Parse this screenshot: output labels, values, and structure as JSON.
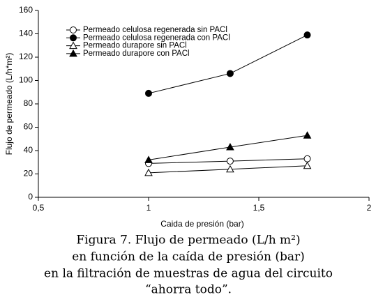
{
  "chart_data": {
    "type": "line",
    "xlabel": "Caida de presión (bar)",
    "ylabel": "Flujo de permeado (L/h*m²)",
    "xlim": [
      0.5,
      2
    ],
    "xticks": [
      {
        "value": 0.5,
        "label": "0,5"
      },
      1,
      {
        "value": 1.5,
        "label": "1,5"
      },
      2
    ],
    "ylim": [
      0,
      160
    ],
    "yticks": [
      0,
      20,
      40,
      60,
      80,
      100,
      120,
      140,
      160
    ],
    "legend": "upper-left",
    "series": [
      {
        "name": "Permeado celulosa regenerada sin PACl",
        "color": "#000000",
        "marker": "open-circle",
        "x": [
          1,
          1.37,
          1.72
        ],
        "values": [
          29,
          31,
          33
        ]
      },
      {
        "name": "Permeado celulosa regenerada con PACl",
        "color": "#000000",
        "marker": "filled-circle",
        "x": [
          1,
          1.37,
          1.72
        ],
        "values": [
          89,
          106,
          139
        ]
      },
      {
        "name": "Permeado durapore sin PACl",
        "color": "#000000",
        "marker": "open-triangle",
        "x": [
          1,
          1.37,
          1.72
        ],
        "values": [
          21,
          24,
          27
        ]
      },
      {
        "name": "Permeado durapore con PACl",
        "color": "#000000",
        "marker": "filled-triangle",
        "x": [
          1,
          1.37,
          1.72
        ],
        "values": [
          32,
          43,
          53
        ]
      }
    ]
  },
  "caption": [
    "Figura 7. Flujo de permeado (L/h m²)",
    "en función de la caída de presión (bar)",
    "en la filtración de muestras de agua del circuito",
    "“ahorra todo”."
  ]
}
